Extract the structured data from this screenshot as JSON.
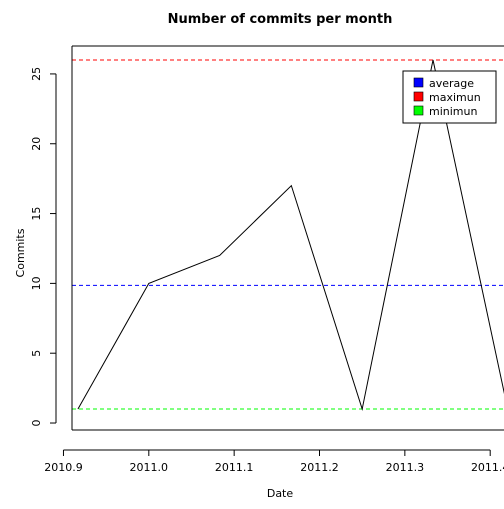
{
  "chart_data": {
    "type": "line",
    "title": "Number of commits per month",
    "xlabel": "Date",
    "ylabel": "Commits",
    "xlim": [
      2010.91,
      2011.415
    ],
    "ylim": [
      -0.5,
      27
    ],
    "x_ticks": [
      2010.9,
      2011.0,
      2011.1,
      2011.2,
      2011.3,
      2011.4
    ],
    "x_tick_labels": [
      "2010.9",
      "2011.0",
      "2011.1",
      "2011.2",
      "2011.3",
      "2011.4"
    ],
    "y_ticks": [
      0,
      5,
      10,
      15,
      20,
      25
    ],
    "y_tick_labels": [
      "0",
      "5",
      "10",
      "15",
      "20",
      "25"
    ],
    "series": [
      {
        "x": [
          2010.917,
          2011.0,
          2011.083,
          2011.167,
          2011.25,
          2011.333,
          2011.417
        ],
        "y": [
          1,
          10,
          12,
          17,
          1,
          26,
          2
        ],
        "color": "#000000"
      }
    ],
    "reference_lines": [
      {
        "name": "average",
        "value": 9.857,
        "color": "#0000ff"
      },
      {
        "name": "maximun",
        "value": 26,
        "color": "#ff0000"
      },
      {
        "name": "minimun",
        "value": 1,
        "color": "#00ff00"
      }
    ],
    "legend": {
      "position": "top-right",
      "entries": [
        {
          "label": "average",
          "color": "#0000ff"
        },
        {
          "label": "maximun",
          "color": "#ff0000"
        },
        {
          "label": "minimun",
          "color": "#00ff00"
        }
      ]
    },
    "grid": false
  }
}
